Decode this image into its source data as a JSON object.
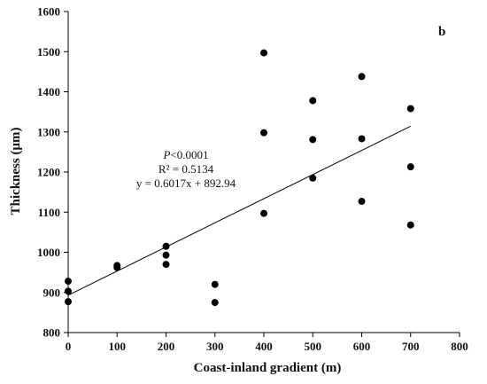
{
  "chart_data": {
    "type": "scatter",
    "panel_label": "b",
    "xlabel": "Coast-inland gradient (m)",
    "ylabel": "Thickness (μm)",
    "xlim": [
      0,
      800
    ],
    "ylim": [
      800,
      1600
    ],
    "x_ticks": [
      0,
      100,
      200,
      300,
      400,
      500,
      600,
      700,
      800
    ],
    "y_ticks": [
      800,
      900,
      1000,
      1100,
      1200,
      1300,
      1400,
      1500,
      1600
    ],
    "grid": false,
    "points": [
      {
        "x": 0,
        "y": 928
      },
      {
        "x": 0,
        "y": 903
      },
      {
        "x": 0,
        "y": 877
      },
      {
        "x": 100,
        "y": 967
      },
      {
        "x": 100,
        "y": 962
      },
      {
        "x": 200,
        "y": 1015
      },
      {
        "x": 200,
        "y": 993
      },
      {
        "x": 200,
        "y": 970
      },
      {
        "x": 300,
        "y": 920
      },
      {
        "x": 300,
        "y": 875
      },
      {
        "x": 400,
        "y": 1497
      },
      {
        "x": 400,
        "y": 1298
      },
      {
        "x": 400,
        "y": 1097
      },
      {
        "x": 500,
        "y": 1378
      },
      {
        "x": 500,
        "y": 1281
      },
      {
        "x": 500,
        "y": 1185
      },
      {
        "x": 600,
        "y": 1438
      },
      {
        "x": 600,
        "y": 1283
      },
      {
        "x": 600,
        "y": 1127
      },
      {
        "x": 700,
        "y": 1358
      },
      {
        "x": 700,
        "y": 1213
      },
      {
        "x": 700,
        "y": 1068
      }
    ],
    "trendline": {
      "slope": 0.6017,
      "intercept": 892.94,
      "x_range": [
        0,
        700
      ]
    },
    "annotation": {
      "p_symbol": "P",
      "p_rest": "<0.0001",
      "r2": "R² = 0.5134",
      "equation": "y = 0.6017x + 892.94"
    }
  }
}
